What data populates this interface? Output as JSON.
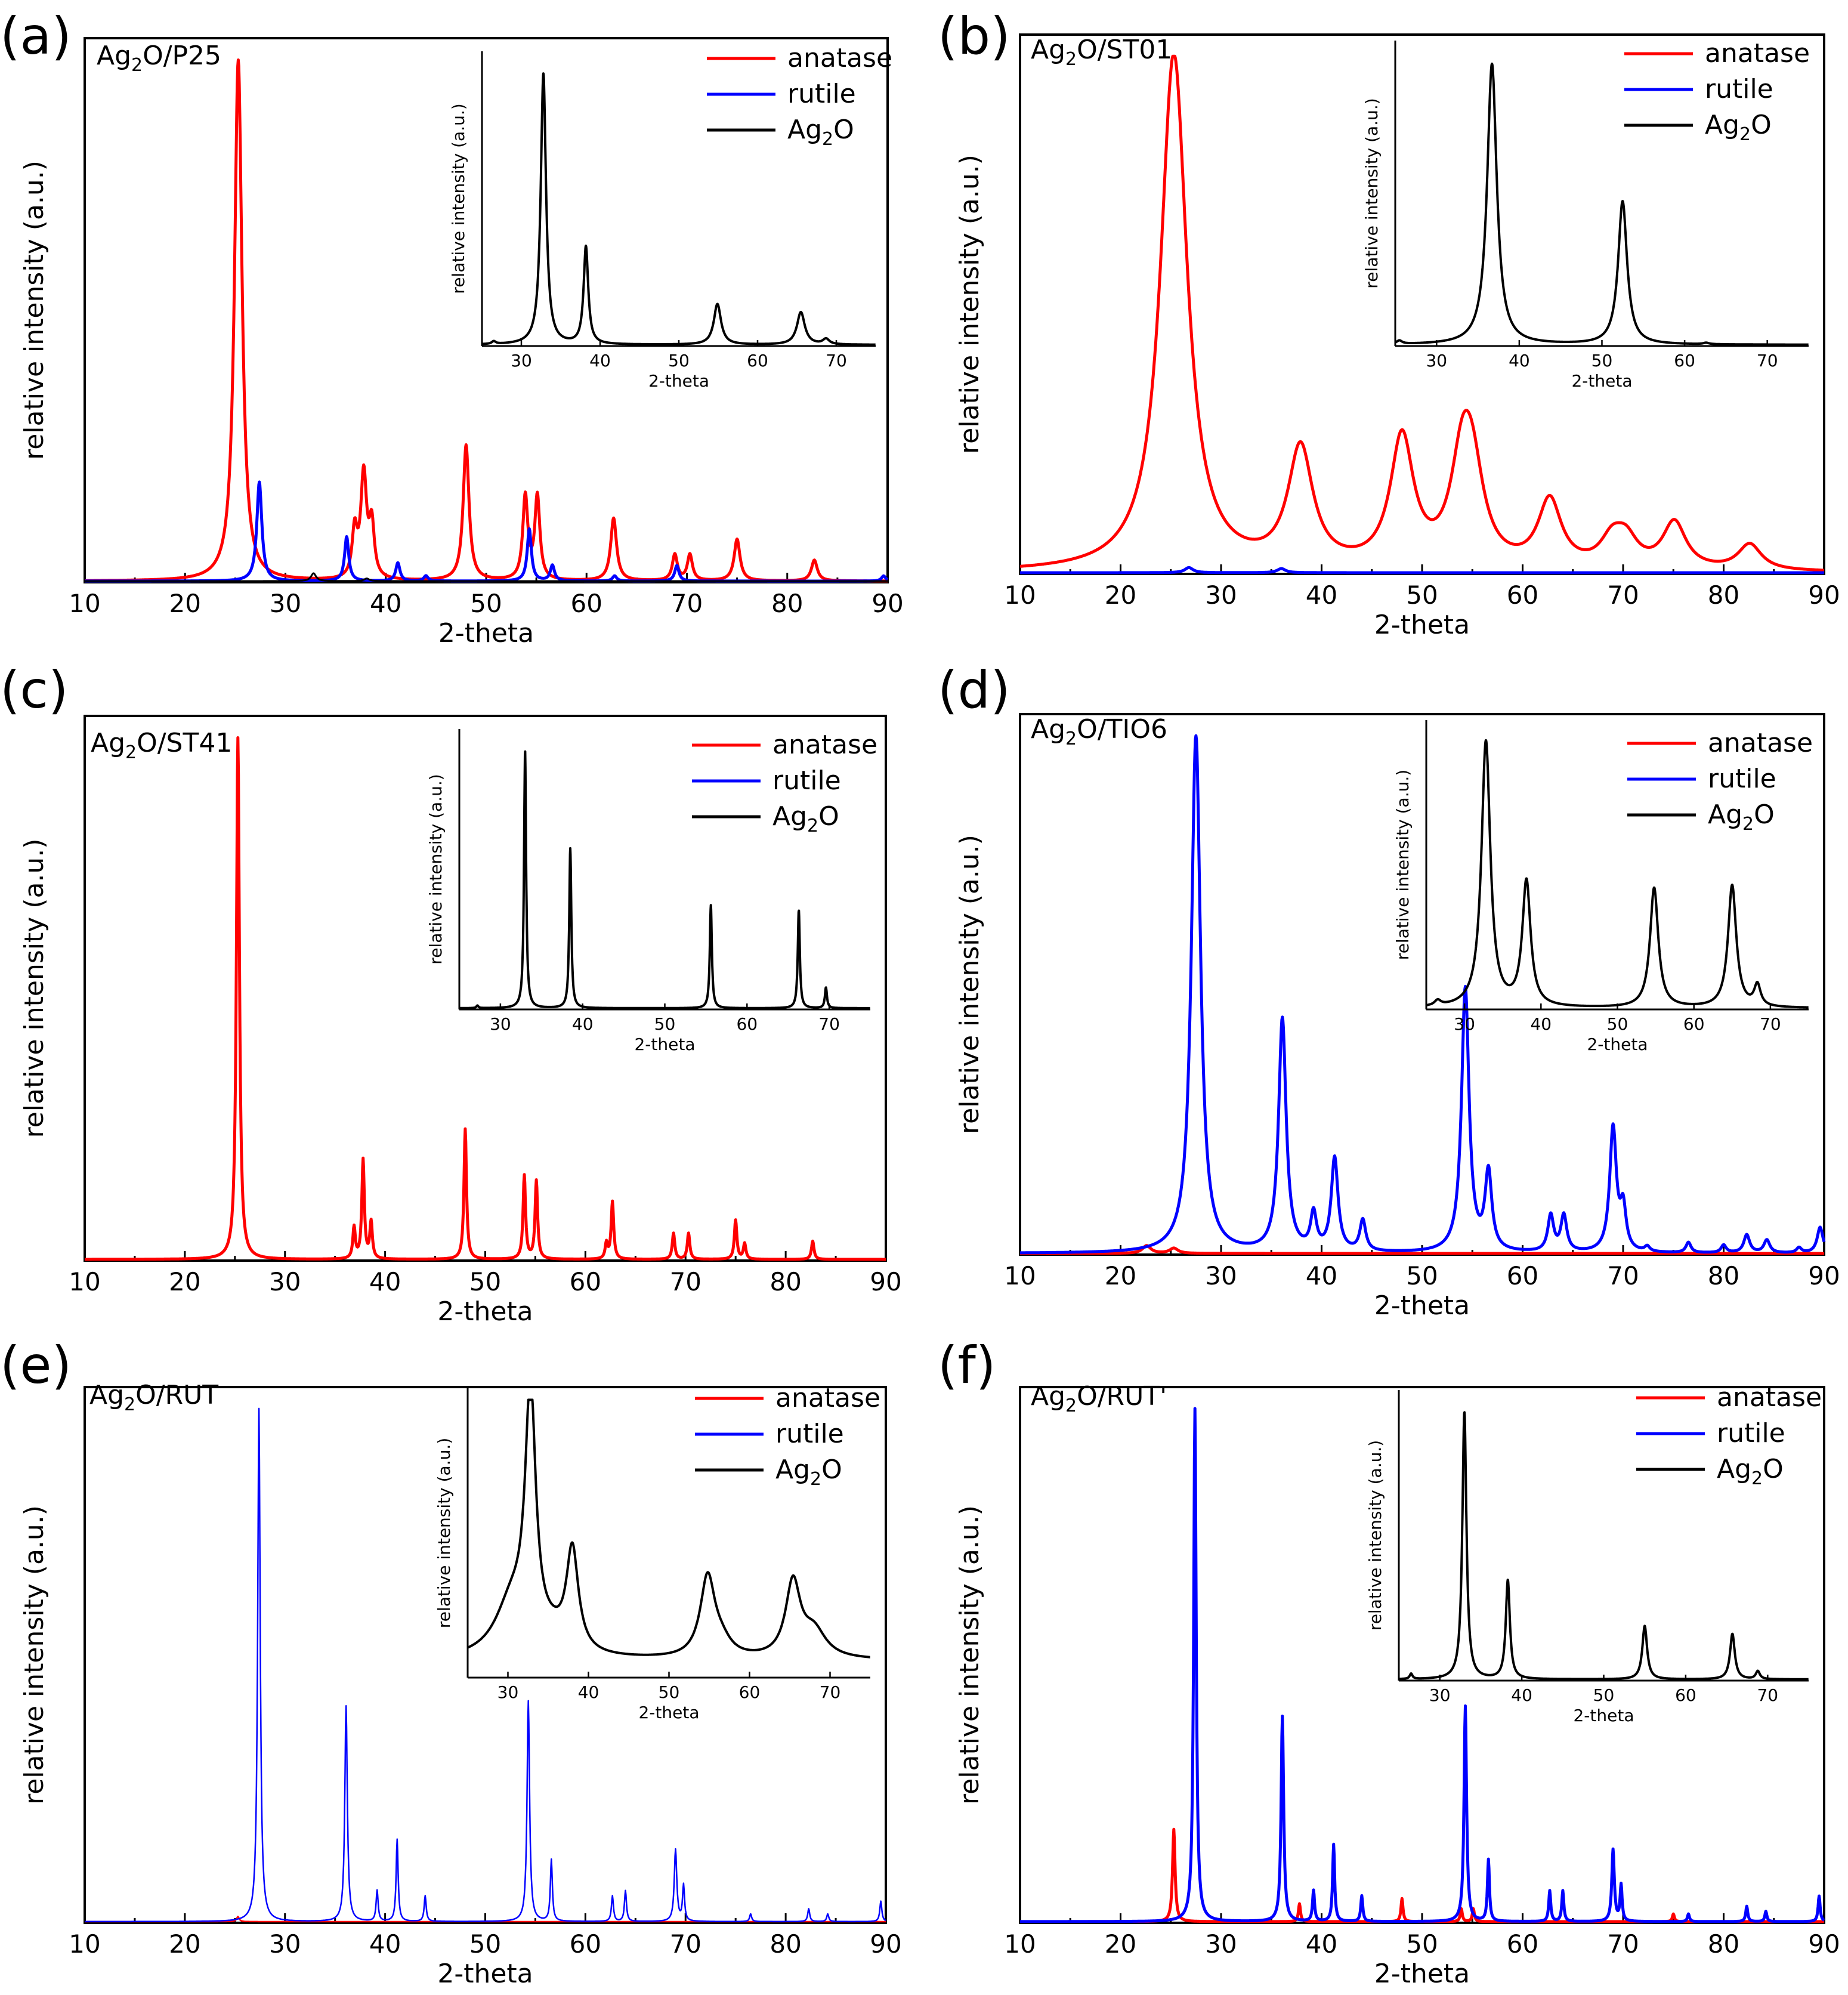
{
  "chart_data": [
    {
      "panel_label": "(a)",
      "type": "line",
      "sample_label_parts": [
        "Ag",
        "2",
        "O/P25"
      ],
      "xlabel": "2-theta",
      "ylabel": "relative intensity (a.u.)",
      "xlim": [
        10,
        90
      ],
      "ylim": [
        0,
        1.0
      ],
      "xticks": [
        10,
        20,
        30,
        40,
        50,
        60,
        70,
        80,
        90
      ],
      "legend": [
        "anatase",
        "rutile",
        "Ag2O"
      ],
      "legend_position": "top-right",
      "series": [
        {
          "name": "anatase",
          "color": "#ff0000",
          "width": 5,
          "peaks": [
            [
              25.3,
              1.0,
              0.45
            ],
            [
              36.9,
              0.09,
              0.3
            ],
            [
              37.8,
              0.2,
              0.35
            ],
            [
              38.6,
              0.1,
              0.3
            ],
            [
              48.0,
              0.26,
              0.35
            ],
            [
              53.9,
              0.16,
              0.3
            ],
            [
              55.1,
              0.16,
              0.3
            ],
            [
              62.7,
              0.12,
              0.35
            ],
            [
              68.8,
              0.05,
              0.3
            ],
            [
              70.3,
              0.05,
              0.3
            ],
            [
              75.0,
              0.08,
              0.35
            ],
            [
              82.7,
              0.04,
              0.35
            ]
          ]
        },
        {
          "name": "rutile",
          "color": "#0000ff",
          "width": 5,
          "peaks": [
            [
              27.4,
              0.19,
              0.3
            ],
            [
              36.1,
              0.085,
              0.25
            ],
            [
              41.2,
              0.035,
              0.25
            ],
            [
              44.0,
              0.01,
              0.25
            ],
            [
              54.3,
              0.1,
              0.25
            ],
            [
              56.6,
              0.03,
              0.25
            ],
            [
              62.8,
              0.01,
              0.25
            ],
            [
              69.0,
              0.03,
              0.25
            ],
            [
              89.6,
              0.01,
              0.25
            ]
          ]
        },
        {
          "name": "Ag2O",
          "color": "#000000",
          "width": 3,
          "peaks": [
            [
              32.8,
              0.015,
              0.3
            ],
            [
              38.1,
              0.005,
              0.3
            ]
          ]
        }
      ],
      "inset": {
        "xlabel": "2-theta",
        "ylabel": "relative intensity (a.u.)",
        "xlim": [
          25,
          75
        ],
        "xticks": [
          30,
          40,
          50,
          60,
          70
        ],
        "series": {
          "name": "Ag2O",
          "color": "#000000",
          "peaks": [
            [
              32.8,
              1.0,
              0.4
            ],
            [
              38.2,
              0.36,
              0.35
            ],
            [
              54.9,
              0.15,
              0.55
            ],
            [
              65.5,
              0.12,
              0.6
            ],
            [
              68.7,
              0.02,
              0.5
            ],
            [
              26.5,
              0.01,
              0.3
            ]
          ]
        }
      }
    },
    {
      "panel_label": "(b)",
      "type": "line",
      "sample_label_parts": [
        "Ag",
        "2",
        "O/ST01"
      ],
      "xlabel": "2-theta",
      "ylabel": "relative intensity (a.u.)",
      "xlim": [
        10,
        90
      ],
      "ylim": [
        0,
        1.0
      ],
      "xticks": [
        10,
        20,
        30,
        40,
        50,
        60,
        70,
        80,
        90
      ],
      "legend": [
        "anatase",
        "rutile",
        "Ag2O"
      ],
      "legend_position": "top-right",
      "series": [
        {
          "name": "anatase",
          "color": "#ff0000",
          "width": 5,
          "peaks": [
            [
              25.3,
              1.0,
              1.6
            ],
            [
              37.9,
              0.23,
              1.5
            ],
            [
              48.0,
              0.25,
              1.4
            ],
            [
              54.0,
              0.18,
              1.4
            ],
            [
              55.0,
              0.15,
              1.4
            ],
            [
              62.7,
              0.13,
              1.4
            ],
            [
              68.9,
              0.05,
              1.4
            ],
            [
              70.3,
              0.05,
              1.4
            ],
            [
              75.1,
              0.09,
              1.4
            ],
            [
              82.6,
              0.05,
              1.4
            ]
          ]
        },
        {
          "name": "rutile",
          "color": "#0000ff",
          "width": 5,
          "peaks": [
            [
              26.8,
              0.01,
              0.5
            ],
            [
              36.0,
              0.008,
              0.5
            ]
          ]
        }
      ],
      "inset": {
        "xlabel": "2-theta",
        "ylabel": "relative intensity (a.u.)",
        "xlim": [
          25,
          75
        ],
        "xticks": [
          30,
          40,
          50,
          60,
          70
        ],
        "series": {
          "name": "Ag2O",
          "color": "#000000",
          "peaks": [
            [
              36.7,
              1.0,
              0.7
            ],
            [
              52.5,
              0.51,
              0.65
            ],
            [
              62.6,
              0.005,
              0.4
            ],
            [
              25.5,
              0.012,
              0.4
            ]
          ]
        }
      }
    },
    {
      "panel_label": "(c)",
      "type": "line",
      "sample_label_parts": [
        "Ag",
        "2",
        "O/ST41"
      ],
      "xlabel": "2-theta",
      "ylabel": "relative intensity (a.u.)",
      "xlim": [
        10,
        90
      ],
      "ylim": [
        0,
        1.0
      ],
      "xticks": [
        10,
        20,
        30,
        40,
        50,
        60,
        70,
        80,
        90
      ],
      "legend": [
        "anatase",
        "rutile",
        "Ag2O"
      ],
      "legend_position": "top-right",
      "series": [
        {
          "name": "anatase",
          "color": "#ff0000",
          "width": 5,
          "peaks": [
            [
              25.3,
              1.0,
              0.18
            ],
            [
              36.9,
              0.06,
              0.15
            ],
            [
              37.8,
              0.19,
              0.15
            ],
            [
              38.6,
              0.07,
              0.15
            ],
            [
              48.0,
              0.25,
              0.15
            ],
            [
              53.9,
              0.16,
              0.15
            ],
            [
              55.1,
              0.15,
              0.15
            ],
            [
              62.1,
              0.03,
              0.15
            ],
            [
              62.7,
              0.11,
              0.15
            ],
            [
              68.8,
              0.05,
              0.15
            ],
            [
              70.3,
              0.05,
              0.15
            ],
            [
              75.0,
              0.075,
              0.15
            ],
            [
              75.9,
              0.03,
              0.15
            ],
            [
              82.7,
              0.035,
              0.15
            ]
          ]
        }
      ],
      "inset": {
        "xlabel": "2-theta",
        "ylabel": "relative intensity (a.u.)",
        "xlim": [
          25,
          75
        ],
        "xticks": [
          30,
          40,
          50,
          60,
          70
        ],
        "series": {
          "name": "Ag2O",
          "color": "#000000",
          "peaks": [
            [
              33.0,
              1.0,
              0.15
            ],
            [
              38.5,
              0.62,
              0.15
            ],
            [
              55.6,
              0.4,
              0.15
            ],
            [
              66.3,
              0.38,
              0.15
            ],
            [
              69.6,
              0.08,
              0.15
            ],
            [
              27.2,
              0.01,
              0.15
            ]
          ]
        }
      }
    },
    {
      "panel_label": "(d)",
      "type": "line",
      "sample_label_parts": [
        "Ag",
        "2",
        "O/TIO6"
      ],
      "xlabel": "2-theta",
      "ylabel": "relative intensity (a.u.)",
      "xlim": [
        10,
        90
      ],
      "ylim": [
        0,
        1.0
      ],
      "xticks": [
        10,
        20,
        30,
        40,
        50,
        60,
        70,
        80,
        90
      ],
      "legend": [
        "anatase",
        "rutile",
        "Ag2O"
      ],
      "legend_position": "top-right",
      "series": [
        {
          "name": "anatase",
          "color": "#ff0000",
          "width": 5,
          "peaks": [
            [
              22.6,
              0.015,
              0.5
            ],
            [
              25.3,
              0.01,
              0.5
            ]
          ]
        },
        {
          "name": "rutile",
          "color": "#0000ff",
          "width": 5,
          "peaks": [
            [
              27.5,
              1.0,
              0.55
            ],
            [
              36.1,
              0.45,
              0.45
            ],
            [
              39.2,
              0.07,
              0.35
            ],
            [
              41.3,
              0.18,
              0.4
            ],
            [
              44.1,
              0.06,
              0.35
            ],
            [
              54.3,
              0.51,
              0.45
            ],
            [
              56.6,
              0.15,
              0.4
            ],
            [
              62.8,
              0.07,
              0.35
            ],
            [
              64.1,
              0.07,
              0.35
            ],
            [
              69.0,
              0.24,
              0.4
            ],
            [
              70.0,
              0.08,
              0.35
            ],
            [
              72.4,
              0.01,
              0.3
            ],
            [
              76.5,
              0.02,
              0.3
            ],
            [
              80.0,
              0.015,
              0.3
            ],
            [
              82.3,
              0.035,
              0.35
            ],
            [
              84.3,
              0.025,
              0.35
            ],
            [
              87.5,
              0.01,
              0.3
            ],
            [
              89.6,
              0.05,
              0.35
            ]
          ]
        }
      ],
      "inset": {
        "xlabel": "2-theta",
        "ylabel": "relative intensity (a.u.)",
        "xlim": [
          25,
          75
        ],
        "xticks": [
          30,
          40,
          50,
          60,
          70
        ],
        "series": {
          "name": "Ag2O",
          "color": "#000000",
          "peaks": [
            [
              32.8,
              1.0,
              0.7
            ],
            [
              38.1,
              0.47,
              0.65
            ],
            [
              54.8,
              0.45,
              0.65
            ],
            [
              65.0,
              0.46,
              0.65
            ],
            [
              68.3,
              0.08,
              0.5
            ],
            [
              26.5,
              0.02,
              0.5
            ]
          ]
        }
      }
    },
    {
      "panel_label": "(e)",
      "type": "line",
      "sample_label_parts": [
        "Ag",
        "2",
        "O/RUT"
      ],
      "xlabel": "2-theta",
      "ylabel": "relative intensity (a.u.)",
      "xlim": [
        10,
        90
      ],
      "ylim": [
        0,
        1.0
      ],
      "xticks": [
        10,
        20,
        30,
        40,
        50,
        60,
        70,
        80,
        90
      ],
      "legend": [
        "anatase",
        "rutile",
        "Ag2O"
      ],
      "legend_position": "top-right",
      "series": [
        {
          "name": "anatase",
          "color": "#ff0000",
          "width": 2.5,
          "peaks": [
            [
              25.3,
              0.01,
              0.15
            ]
          ]
        },
        {
          "name": "rutile",
          "color": "#0000ff",
          "width": 2.5,
          "peaks": [
            [
              27.4,
              1.0,
              0.15
            ],
            [
              36.1,
              0.42,
              0.15
            ],
            [
              39.2,
              0.06,
              0.12
            ],
            [
              41.2,
              0.16,
              0.12
            ],
            [
              44.0,
              0.05,
              0.12
            ],
            [
              54.3,
              0.43,
              0.15
            ],
            [
              56.6,
              0.12,
              0.12
            ],
            [
              62.7,
              0.05,
              0.12
            ],
            [
              64.0,
              0.06,
              0.12
            ],
            [
              69.0,
              0.14,
              0.15
            ],
            [
              69.8,
              0.07,
              0.12
            ],
            [
              76.5,
              0.015,
              0.12
            ],
            [
              82.3,
              0.025,
              0.12
            ],
            [
              84.2,
              0.015,
              0.12
            ],
            [
              89.5,
              0.04,
              0.12
            ]
          ]
        }
      ],
      "inset": {
        "xlabel": "2-theta",
        "ylabel": "relative intensity (a.u.)",
        "xlim": [
          25,
          75
        ],
        "xticks": [
          30,
          40,
          50,
          60,
          70
        ],
        "series": {
          "name": "Ag2O",
          "color": "#000000",
          "baseline": 0.06,
          "peaks": [
            [
              32.8,
              0.93,
              0.8
            ],
            [
              30.5,
              0.2,
              2.5
            ],
            [
              38.0,
              0.38,
              0.9
            ],
            [
              35.5,
              0.05,
              2.0
            ],
            [
              54.8,
              0.3,
              1.1
            ],
            [
              56.5,
              0.05,
              1.5
            ],
            [
              65.4,
              0.28,
              1.1
            ],
            [
              68.0,
              0.1,
              1.8
            ]
          ]
        }
      }
    },
    {
      "panel_label": "(f)",
      "type": "line",
      "sample_label_parts": [
        "Ag",
        "2",
        "O/RUT'"
      ],
      "xlabel": "2-theta",
      "ylabel": "relative intensity (a.u.)",
      "xlim": [
        10,
        90
      ],
      "ylim": [
        0,
        1.0
      ],
      "xticks": [
        10,
        20,
        30,
        40,
        50,
        60,
        70,
        80,
        90
      ],
      "legend": [
        "anatase",
        "rutile",
        "Ag2O"
      ],
      "legend_position": "top-right",
      "series": [
        {
          "name": "anatase",
          "color": "#ff0000",
          "width": 5,
          "peaks": [
            [
              25.3,
              0.18,
              0.15
            ],
            [
              37.8,
              0.035,
              0.12
            ],
            [
              48.0,
              0.045,
              0.12
            ],
            [
              53.9,
              0.025,
              0.12
            ],
            [
              55.1,
              0.025,
              0.12
            ],
            [
              75.0,
              0.015,
              0.12
            ]
          ]
        },
        {
          "name": "rutile",
          "color": "#0000ff",
          "width": 5,
          "peaks": [
            [
              27.4,
              1.0,
              0.15
            ],
            [
              36.1,
              0.4,
              0.15
            ],
            [
              39.2,
              0.06,
              0.12
            ],
            [
              41.2,
              0.15,
              0.12
            ],
            [
              44.0,
              0.05,
              0.12
            ],
            [
              54.3,
              0.42,
              0.15
            ],
            [
              56.6,
              0.12,
              0.12
            ],
            [
              62.7,
              0.06,
              0.12
            ],
            [
              64.0,
              0.06,
              0.12
            ],
            [
              69.0,
              0.14,
              0.15
            ],
            [
              69.8,
              0.07,
              0.12
            ],
            [
              76.5,
              0.015,
              0.12
            ],
            [
              82.3,
              0.03,
              0.12
            ],
            [
              84.2,
              0.02,
              0.12
            ],
            [
              89.5,
              0.05,
              0.12
            ]
          ]
        }
      ],
      "inset": {
        "xlabel": "2-theta",
        "ylabel": "relative intensity (a.u.)",
        "xlim": [
          25,
          75
        ],
        "xticks": [
          30,
          40,
          50,
          60,
          70
        ],
        "series": {
          "name": "Ag2O",
          "color": "#000000",
          "peaks": [
            [
              33.0,
              1.0,
              0.3
            ],
            [
              38.3,
              0.37,
              0.3
            ],
            [
              55.0,
              0.2,
              0.35
            ],
            [
              65.7,
              0.17,
              0.35
            ],
            [
              68.8,
              0.03,
              0.3
            ],
            [
              26.5,
              0.02,
              0.2
            ]
          ]
        }
      }
    }
  ]
}
